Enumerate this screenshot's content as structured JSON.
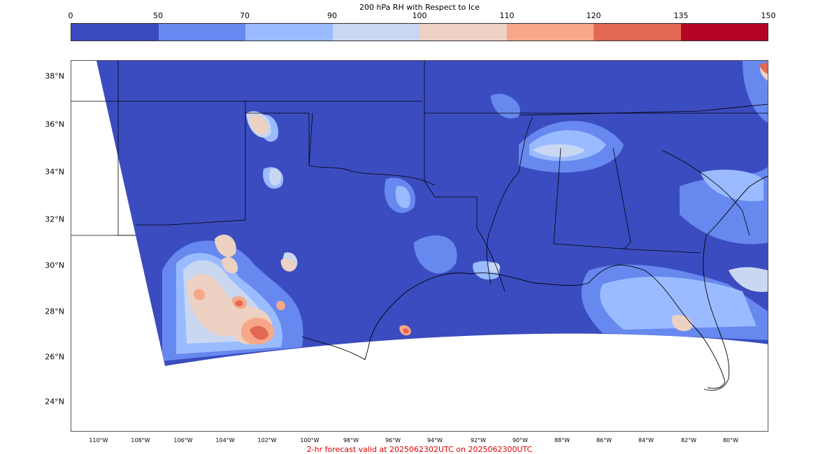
{
  "title": "200 hPa RH with Respect to Ice",
  "colorbar": {
    "ticks": [
      "0",
      "50",
      "70",
      "90",
      "100",
      "110",
      "120",
      "135",
      "150"
    ],
    "colors": [
      "#3b4cc0",
      "#6788ee",
      "#9abbff",
      "#c9d7f0",
      "#edd1c2",
      "#f7a889",
      "#e26952",
      "#b40426"
    ]
  },
  "map": {
    "lat_labels": [
      "38°N",
      "36°N",
      "34°N",
      "32°N",
      "30°N",
      "28°N",
      "26°N",
      "24°N"
    ],
    "lon_labels": [
      "110°W",
      "108°W",
      "106°W",
      "104°W",
      "102°W",
      "100°W",
      "98°W",
      "96°W",
      "94°W",
      "92°W",
      "90°W",
      "88°W",
      "86°W",
      "84°W",
      "82°W",
      "80°W"
    ]
  },
  "footer": "2-hr forecast valid at 2025062302UTC on 2025062300UTC"
}
